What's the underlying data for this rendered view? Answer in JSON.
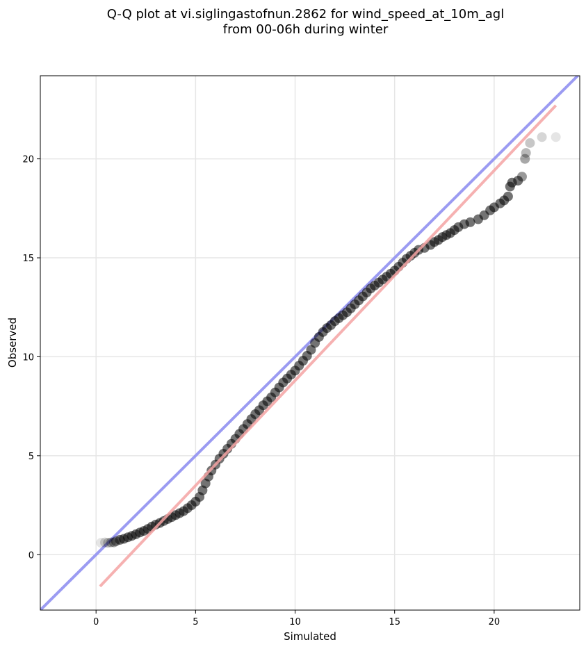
{
  "chart_data": {
    "type": "scatter",
    "title_line1": "Q-Q plot at vi.siglingastofnun.2862 for wind_speed_at_10m_agl",
    "title_line2": "from 00-06h during winter",
    "xlabel": "Simulated",
    "ylabel": "Observed",
    "xlim": [
      -2.8,
      24.3
    ],
    "ylim": [
      -2.8,
      24.2
    ],
    "xticks": [
      0,
      5,
      10,
      15,
      20
    ],
    "yticks": [
      0,
      5,
      10,
      15,
      20
    ],
    "grid": true,
    "point_color": "#000000",
    "identity_line": {
      "color": "#9b9bf2",
      "from": [
        -2.8,
        -2.8
      ],
      "to": [
        24.3,
        24.3
      ]
    },
    "fit_line": {
      "color": "#f4a3a3",
      "from": [
        0.2,
        -1.6
      ],
      "to": [
        23.1,
        22.7
      ]
    },
    "points": [
      [
        0.25,
        0.6
      ],
      [
        0.45,
        0.62
      ],
      [
        0.6,
        0.6
      ],
      [
        0.75,
        0.62
      ],
      [
        0.9,
        0.62
      ],
      [
        1.0,
        0.68
      ],
      [
        1.2,
        0.75
      ],
      [
        1.4,
        0.8
      ],
      [
        1.6,
        0.88
      ],
      [
        1.8,
        0.95
      ],
      [
        2.0,
        1.03
      ],
      [
        2.2,
        1.12
      ],
      [
        2.4,
        1.2
      ],
      [
        2.6,
        1.3
      ],
      [
        2.8,
        1.42
      ],
      [
        3.0,
        1.52
      ],
      [
        3.2,
        1.6
      ],
      [
        3.4,
        1.7
      ],
      [
        3.6,
        1.8
      ],
      [
        3.8,
        1.9
      ],
      [
        4.0,
        2.0
      ],
      [
        4.2,
        2.1
      ],
      [
        4.4,
        2.2
      ],
      [
        4.6,
        2.35
      ],
      [
        4.8,
        2.5
      ],
      [
        5.0,
        2.68
      ],
      [
        5.2,
        2.92
      ],
      [
        5.35,
        3.25
      ],
      [
        5.5,
        3.6
      ],
      [
        5.65,
        3.95
      ],
      [
        5.8,
        4.25
      ],
      [
        6.0,
        4.55
      ],
      [
        6.2,
        4.85
      ],
      [
        6.4,
        5.1
      ],
      [
        6.6,
        5.35
      ],
      [
        6.8,
        5.6
      ],
      [
        7.0,
        5.85
      ],
      [
        7.2,
        6.1
      ],
      [
        7.4,
        6.35
      ],
      [
        7.6,
        6.6
      ],
      [
        7.8,
        6.85
      ],
      [
        8.0,
        7.1
      ],
      [
        8.2,
        7.3
      ],
      [
        8.4,
        7.55
      ],
      [
        8.6,
        7.75
      ],
      [
        8.8,
        7.95
      ],
      [
        9.0,
        8.2
      ],
      [
        9.2,
        8.45
      ],
      [
        9.4,
        8.7
      ],
      [
        9.6,
        8.9
      ],
      [
        9.8,
        9.1
      ],
      [
        10.0,
        9.3
      ],
      [
        10.2,
        9.55
      ],
      [
        10.4,
        9.8
      ],
      [
        10.6,
        10.05
      ],
      [
        10.8,
        10.35
      ],
      [
        11.0,
        10.7
      ],
      [
        11.2,
        11.0
      ],
      [
        11.4,
        11.25
      ],
      [
        11.6,
        11.45
      ],
      [
        11.8,
        11.6
      ],
      [
        12.0,
        11.8
      ],
      [
        12.2,
        11.95
      ],
      [
        12.4,
        12.1
      ],
      [
        12.6,
        12.25
      ],
      [
        12.8,
        12.45
      ],
      [
        13.0,
        12.65
      ],
      [
        13.2,
        12.85
      ],
      [
        13.4,
        13.05
      ],
      [
        13.6,
        13.25
      ],
      [
        13.8,
        13.45
      ],
      [
        14.0,
        13.6
      ],
      [
        14.2,
        13.75
      ],
      [
        14.4,
        13.9
      ],
      [
        14.6,
        14.05
      ],
      [
        14.8,
        14.2
      ],
      [
        15.0,
        14.35
      ],
      [
        15.2,
        14.55
      ],
      [
        15.4,
        14.75
      ],
      [
        15.6,
        14.95
      ],
      [
        15.8,
        15.1
      ],
      [
        16.0,
        15.25
      ],
      [
        16.2,
        15.4
      ],
      [
        16.5,
        15.5
      ],
      [
        16.8,
        15.65
      ],
      [
        17.0,
        15.8
      ],
      [
        17.2,
        15.9
      ],
      [
        17.4,
        16.05
      ],
      [
        17.6,
        16.15
      ],
      [
        17.8,
        16.25
      ],
      [
        18.0,
        16.4
      ],
      [
        18.2,
        16.55
      ],
      [
        18.5,
        16.7
      ],
      [
        18.8,
        16.8
      ],
      [
        19.2,
        16.95
      ],
      [
        19.5,
        17.15
      ],
      [
        19.8,
        17.4
      ],
      [
        20.0,
        17.55
      ],
      [
        20.3,
        17.75
      ],
      [
        20.5,
        17.9
      ],
      [
        20.7,
        18.1
      ],
      [
        20.8,
        18.6
      ],
      [
        20.9,
        18.8
      ],
      [
        21.2,
        18.9
      ],
      [
        21.4,
        19.1
      ],
      [
        21.55,
        20.0
      ],
      [
        21.6,
        20.3
      ],
      [
        21.8,
        20.8
      ],
      [
        22.4,
        21.1
      ],
      [
        23.1,
        21.1
      ]
    ]
  }
}
